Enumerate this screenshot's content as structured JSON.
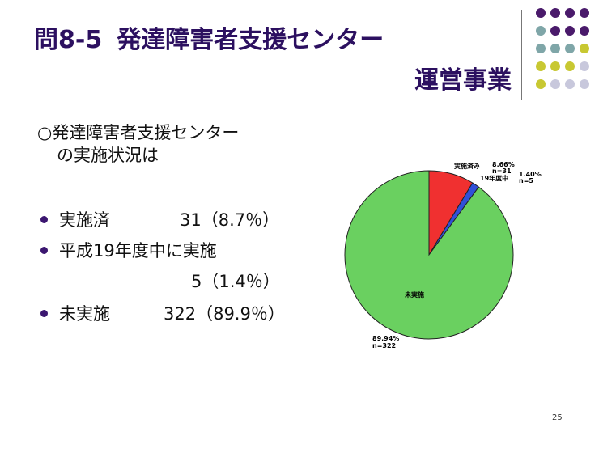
{
  "title": {
    "number": "問8-5",
    "line1": "発達障害者支援センター",
    "line2": "運営事業"
  },
  "intro": {
    "line1": "○発達障害者支援センター",
    "line2": "の実施状況は"
  },
  "bullets": [
    {
      "label": "実施済",
      "value": "31（8.7％）"
    },
    {
      "label": "平成19年度中に実施",
      "value": "5（1.4％）"
    },
    {
      "label": "未実施",
      "value": "322（89.9％）"
    }
  ],
  "colors": {
    "title": "#2c1060",
    "dot_purple": "#4a1a6b",
    "dot_teal": "#7fa6a8",
    "dot_olive": "#c8c832",
    "dot_lavender": "#c8c8dc",
    "implemented": "#f03030",
    "planned": "#3050d8",
    "not_implemented": "#6ad060"
  },
  "chart_data": {
    "type": "pie",
    "slices": [
      {
        "name": "実施済み",
        "percent": 8.66,
        "n": 31,
        "color": "#f03030",
        "percent_label": "8.66%",
        "n_label": "n=31"
      },
      {
        "name": "19年度中",
        "percent": 1.4,
        "n": 5,
        "color": "#3050d8",
        "percent_label": "1.40%",
        "n_label": "n=5"
      },
      {
        "name": "未実施",
        "percent": 89.94,
        "n": 322,
        "color": "#6ad060",
        "percent_label": "89.94%",
        "n_label": "n=322"
      }
    ]
  },
  "page_number": "25"
}
